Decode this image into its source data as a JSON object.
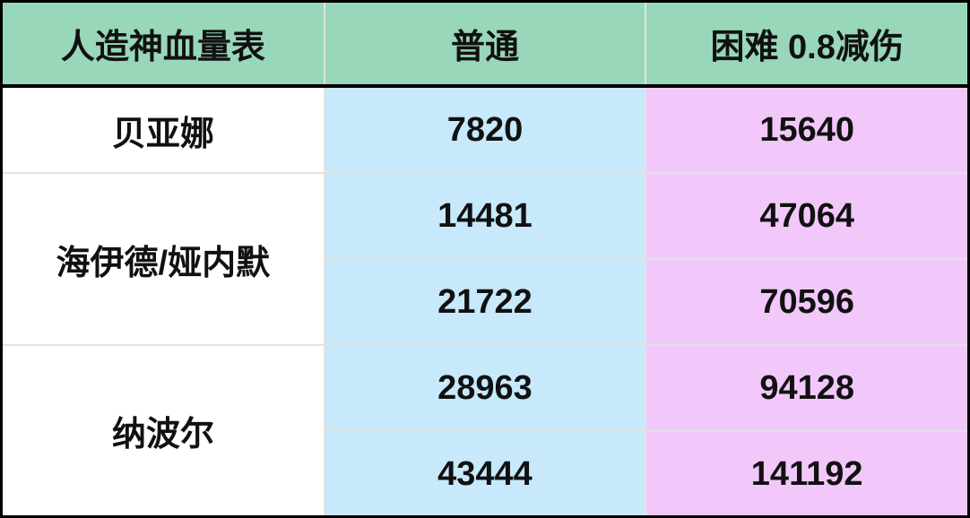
{
  "header": {
    "col1": "人造神血量表",
    "col2": "普通",
    "col3": "困难 0.8减伤"
  },
  "colors": {
    "header_bg": "#98d7b9",
    "normal_bg": "#c7e9fb",
    "hard_bg": "#f2c8fb"
  },
  "rows": [
    {
      "name": "贝亚娜",
      "values": [
        {
          "normal": "7820",
          "hard": "15640"
        }
      ]
    },
    {
      "name": "海伊德/娅内默",
      "values": [
        {
          "normal": "14481",
          "hard": "47064"
        },
        {
          "normal": "21722",
          "hard": "70596"
        }
      ]
    },
    {
      "name": "纳波尔",
      "values": [
        {
          "normal": "28963",
          "hard": "94128"
        },
        {
          "normal": "43444",
          "hard": "141192"
        }
      ]
    }
  ]
}
